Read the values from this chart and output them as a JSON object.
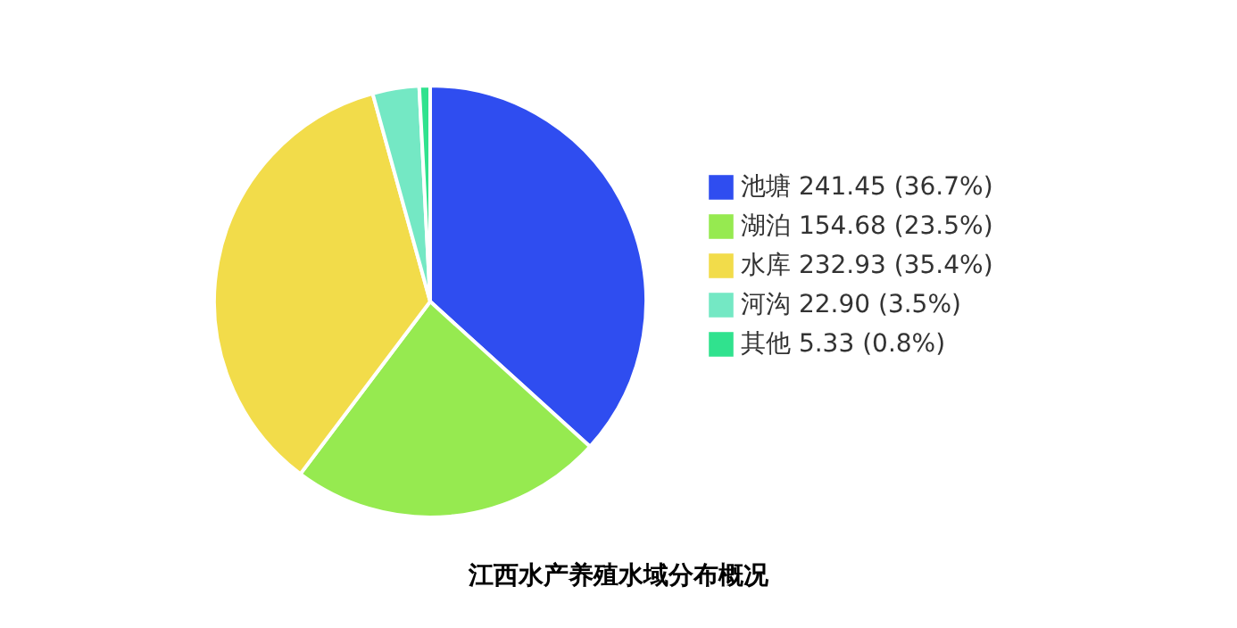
{
  "chart_data": {
    "type": "pie",
    "title": "江西水产养殖水域分布概况",
    "categories": [
      "池塘",
      "湖泊",
      "水库",
      "河沟",
      "其他"
    ],
    "values": [
      241.45,
      154.68,
      232.93,
      22.9,
      5.33
    ],
    "value_labels": [
      "241.45 (36.7%)",
      "154.68 (23.5%)",
      "232.93 (35.4%)",
      "22.90 (3.5%)",
      "5.33 (0.8%)"
    ],
    "colors": [
      "#2f4df0",
      "#96ea50",
      "#f2dc4a",
      "#74e8c4",
      "#30e28e"
    ],
    "legend": "right"
  }
}
